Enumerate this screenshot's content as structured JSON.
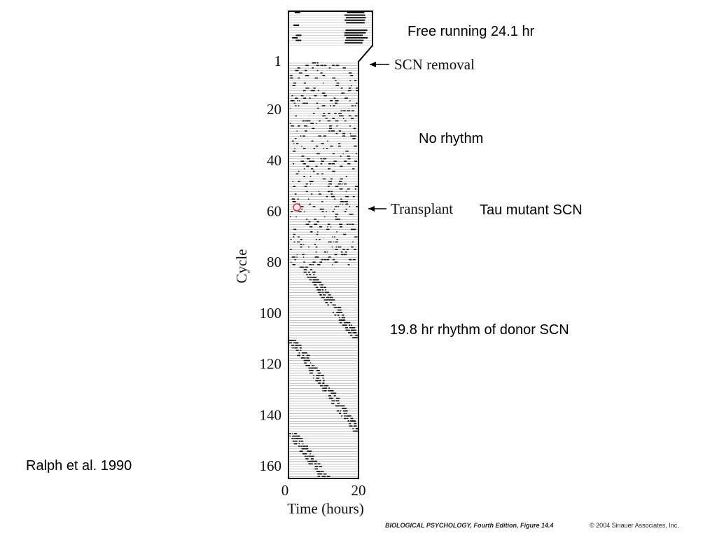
{
  "slide": {
    "annotations": [
      "Free running 24.1 hr",
      "No rhythm",
      "Tau mutant SCN",
      "19.8 hr rhythm of donor SCN"
    ],
    "citation": "Ralph et al. 1990",
    "footer": {
      "source": "BIOLOGICAL PSYCHOLOGY, Fourth Edition, Figure 14.4",
      "copyright": "© 2004 Sinauer Associates, Inc."
    }
  },
  "figure": {
    "arrows": [
      "SCN removal",
      "Transplant"
    ],
    "ylabel": "Cycle",
    "yticks": [
      1,
      20,
      40,
      60,
      80,
      100,
      120,
      140,
      160
    ],
    "xlabel": "Time (hours)",
    "xticks": [
      0,
      20
    ]
  }
}
